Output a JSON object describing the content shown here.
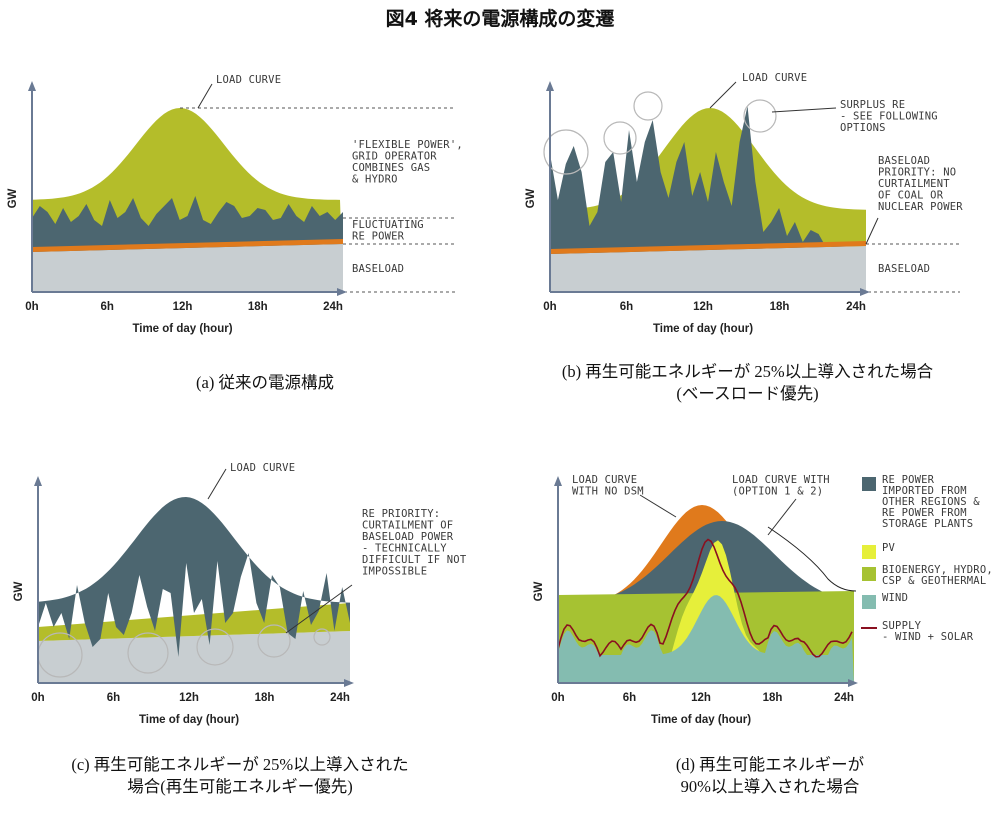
{
  "title": "図4 将来の電源構成の変遷",
  "colors": {
    "baseload": "#c8ced1",
    "orange": "#e07a1c",
    "fluct": "#4c6670",
    "flex": "#b4bd2a",
    "bio": "#a6c232",
    "pv": "#e6ef3a",
    "wind": "#84bcb0",
    "supply": "#8a1020",
    "axis": "#6a7a94",
    "dash": "#555555"
  },
  "chart_data": [
    {
      "type": "area",
      "id": "a",
      "caption": "(a)  従来の電源構成",
      "xticks": [
        "0h",
        "6h",
        "12h",
        "18h",
        "24h"
      ],
      "xlabel": "Time of day (hour)",
      "ylabel": "GW",
      "annotations": [
        {
          "text": "LOAD CURVE"
        },
        {
          "text": "'FLEXIBLE POWER',\nGRID OPERATOR\nCOMBINES GAS\n& HYDRO"
        },
        {
          "text": "FLUCTUATING\nRE POWER"
        },
        {
          "text": "BASELOAD"
        }
      ]
    },
    {
      "type": "area",
      "id": "b",
      "caption": "(b)  再生可能エネルギーが 25%以上導入された場合\n(ベースロード優先)",
      "xticks": [
        "0h",
        "6h",
        "12h",
        "18h",
        "24h"
      ],
      "xlabel": "Time of day (hour)",
      "ylabel": "GW",
      "annotations": [
        {
          "text": "LOAD CURVE"
        },
        {
          "text": "SURPLUS RE\n- SEE FOLLOWING\nOPTIONS"
        },
        {
          "text": "BASELOAD\nPRIORITY: NO\nCURTAILMENT\nOF COAL OR\nNUCLEAR POWER"
        },
        {
          "text": "BASELOAD"
        }
      ]
    },
    {
      "type": "area",
      "id": "c",
      "caption": "(c)  再生可能エネルギーが 25%以上導入された\n場合(再生可能エネルギー優先)",
      "xticks": [
        "0h",
        "6h",
        "12h",
        "18h",
        "24h"
      ],
      "xlabel": "Time of day (hour)",
      "ylabel": "GW",
      "annotations": [
        {
          "text": "LOAD CURVE"
        },
        {
          "text": "RE PRIORITY:\nCURTAILMENT OF\nBASELOAD POWER\n- TECHNICALLY\nDIFFICULT IF NOT\nIMPOSSIBLE"
        }
      ]
    },
    {
      "type": "area",
      "id": "d",
      "caption": "(d)  再生可能エネルギーが\n90%以上導入された場合",
      "xticks": [
        "0h",
        "6h",
        "12h",
        "18h",
        "24h"
      ],
      "xlabel": "Time of day (hour)",
      "ylabel": "GW",
      "annotations": [
        {
          "text": "LOAD CURVE\nWITH NO DSM"
        },
        {
          "text": "LOAD CURVE WITH\n(OPTION 1 & 2)"
        }
      ],
      "legend": [
        {
          "text": "RE POWER\nIMPORTED FROM\nOTHER REGIONS &\nRE POWER FROM\nSTORAGE PLANTS",
          "color": "#4c6670",
          "kind": "box"
        },
        {
          "text": "PV",
          "color": "#e6ef3a",
          "kind": "box"
        },
        {
          "text": "BIOENERGY, HYDRO,\nCSP & GEOTHERMAL",
          "color": "#a6c232",
          "kind": "box"
        },
        {
          "text": "WIND",
          "color": "#84bcb0",
          "kind": "box"
        },
        {
          "text": "SUPPLY\n- WIND + SOLAR",
          "color": "#8a1020",
          "kind": "line"
        }
      ]
    }
  ]
}
